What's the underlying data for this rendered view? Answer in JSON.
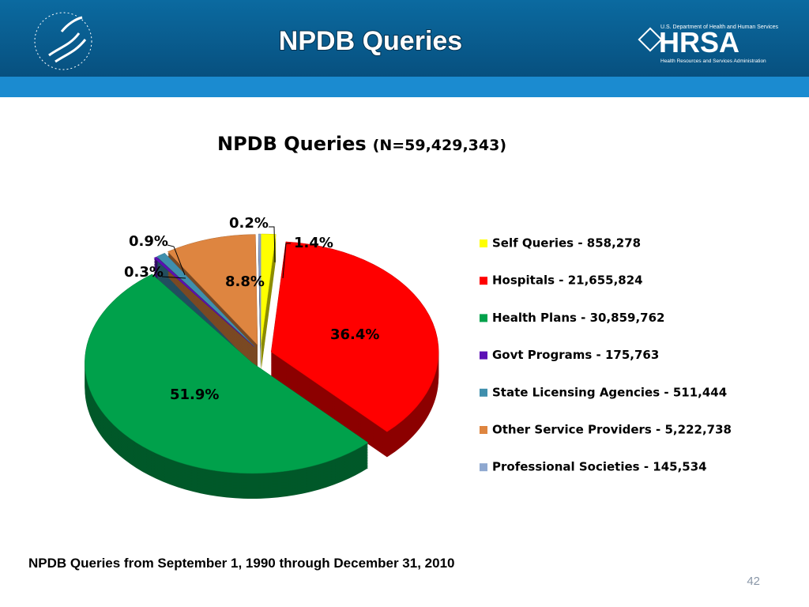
{
  "header": {
    "title": "NPDB Queries",
    "logo": {
      "department": "U.S. Department of Health and Human Services",
      "name": "HRSA",
      "subtitle": "Health Resources and Services Administration"
    }
  },
  "chart_data": {
    "type": "pie",
    "title": "NPDB Queries",
    "subtitle": "(N=59,429,343)",
    "categories": [
      "Self Queries - 858,278",
      "Hospitals - 21,655,824",
      "Health Plans - 30,859,762",
      "Govt Programs - 175,763",
      "State Licensing Agencies - 511,444",
      "Other Service Providers - 5,222,738",
      "Professional Societies - 145,534"
    ],
    "values": [
      1.4,
      36.4,
      51.9,
      0.3,
      0.9,
      8.8,
      0.2
    ],
    "value_labels": [
      "1.4%",
      "36.4%",
      "51.9%",
      "0.3%",
      "0.9%",
      "8.8%",
      "0.2%"
    ],
    "colors": [
      "#ffff00",
      "#ff0000",
      "#00a14b",
      "#5b0fb5",
      "#3f8fad",
      "#de8540",
      "#8fa8d0"
    ],
    "legend": "right"
  },
  "footnote": "NPDB Queries from September 1, 1990 through December 31, 2010",
  "page_number": "42"
}
